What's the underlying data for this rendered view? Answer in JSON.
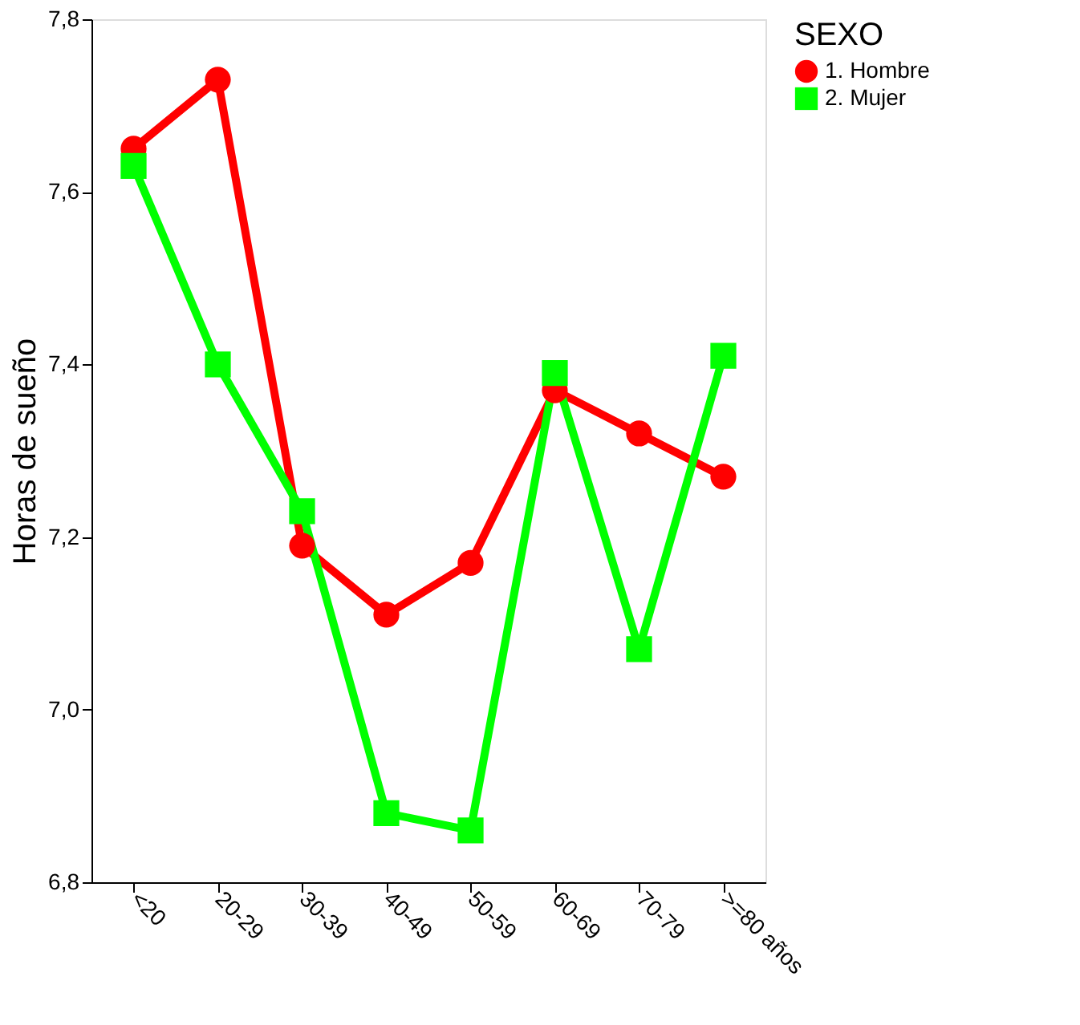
{
  "chart_data": {
    "type": "line",
    "ylabel": "Horas de sueño",
    "legend_title": "SEXO",
    "legend": "right",
    "grid": false,
    "categories": [
      "<20",
      "20-29",
      "30-39",
      "40-49",
      "50-59",
      "60-69",
      "70-79",
      ">=80 años"
    ],
    "ylim": [
      6.8,
      7.8
    ],
    "yticks": [
      {
        "value": 6.8,
        "label": "6,8"
      },
      {
        "value": 7.0,
        "label": "7,0"
      },
      {
        "value": 7.2,
        "label": "7,2"
      },
      {
        "value": 7.4,
        "label": "7,4"
      },
      {
        "value": 7.6,
        "label": "7,6"
      },
      {
        "value": 7.8,
        "label": "7,8"
      }
    ],
    "series": [
      {
        "name": "1. Hombre",
        "color": "#ff0000",
        "marker": "circle",
        "values": [
          7.65,
          7.73,
          7.19,
          7.11,
          7.17,
          7.37,
          7.32,
          7.27
        ]
      },
      {
        "name": "2. Mujer",
        "color": "#00ff00",
        "marker": "square",
        "values": [
          7.63,
          7.4,
          7.23,
          6.88,
          6.86,
          7.39,
          7.07,
          7.41
        ]
      }
    ]
  }
}
